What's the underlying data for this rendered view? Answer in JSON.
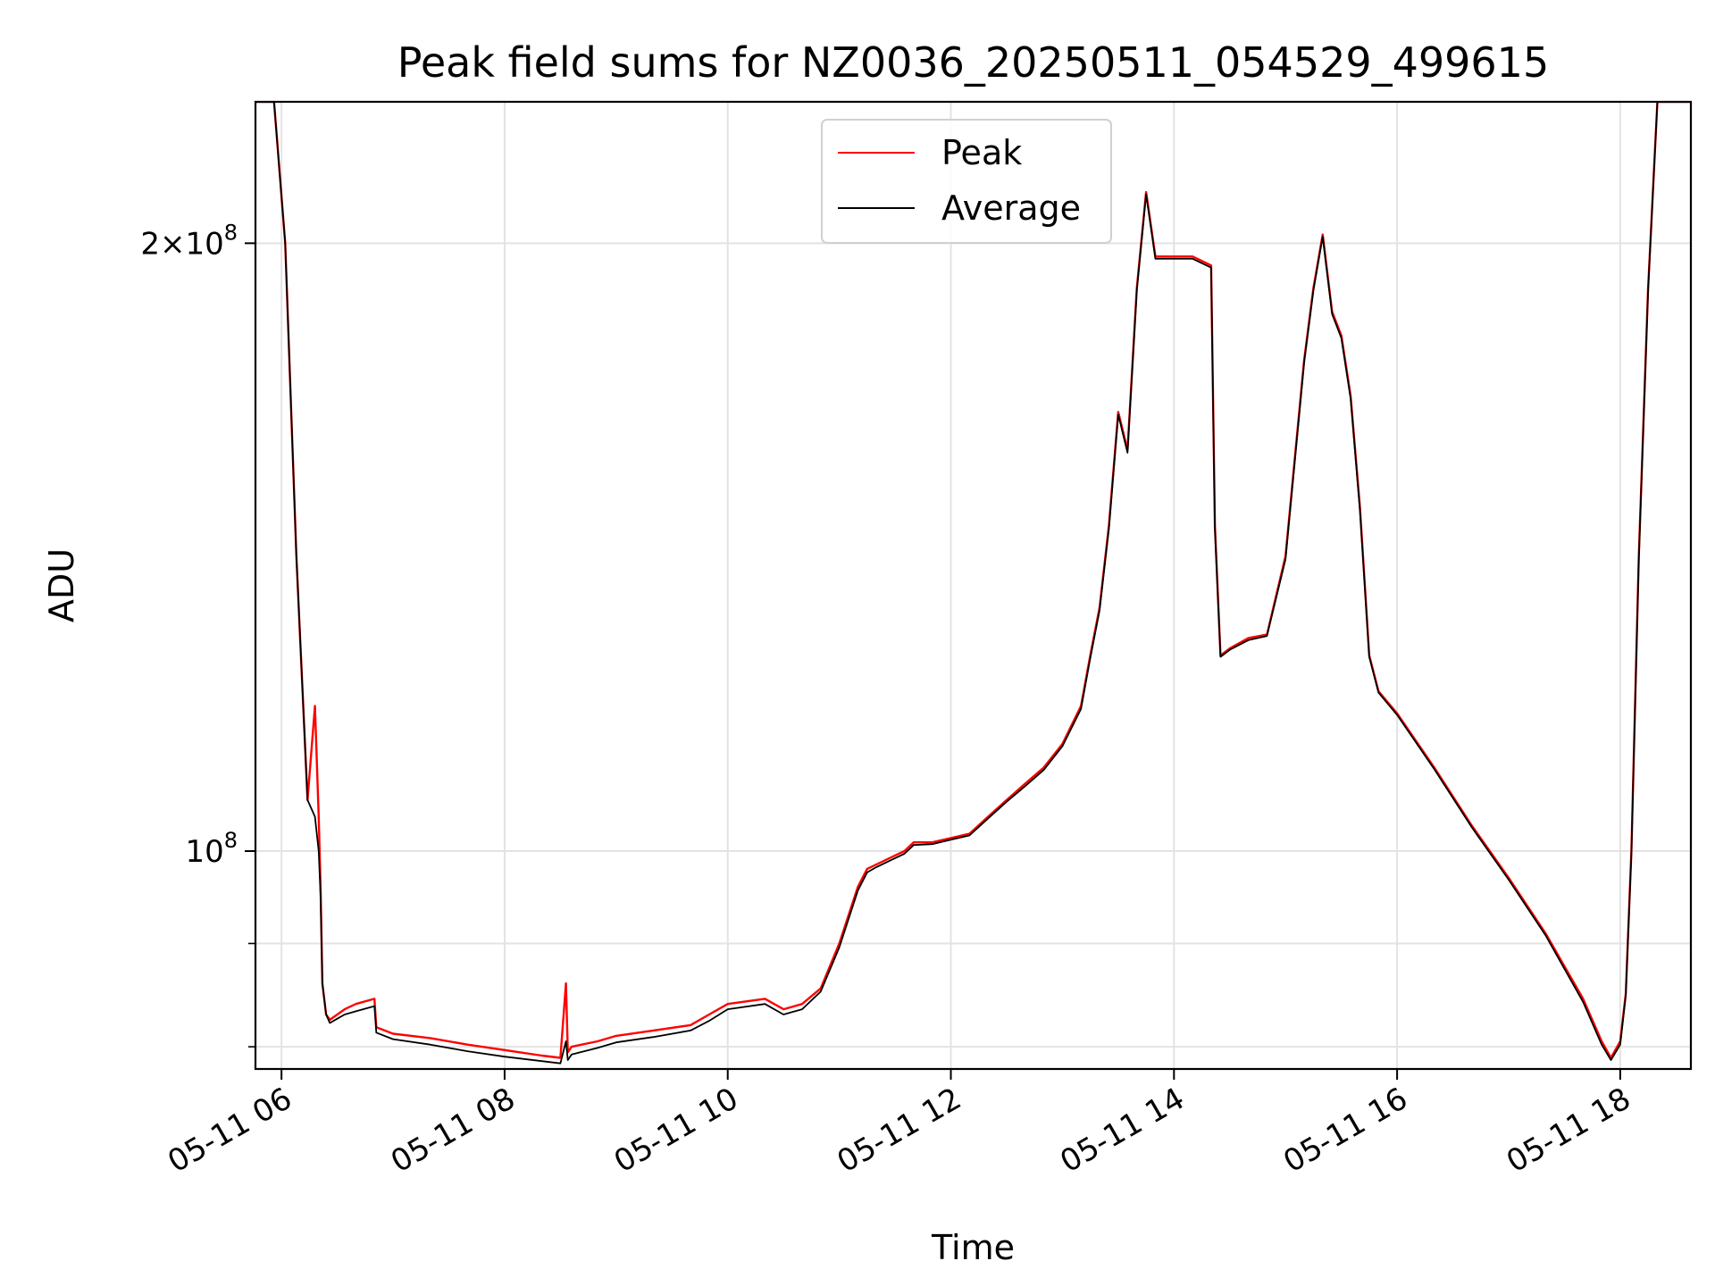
{
  "chart_data": {
    "type": "line",
    "title": "Peak field sums for NZ0036_20250511_054529_499615",
    "xlabel": "Time",
    "ylabel": "ADU",
    "x_axis_type": "datetime",
    "xlim": [
      "05-11 05:46",
      "05-11 18:38"
    ],
    "x_ticks": [
      "05-11 06",
      "05-11 08",
      "05-11 10",
      "05-11 12",
      "05-11 14",
      "05-11 16",
      "05-11 18"
    ],
    "y_scale": "log",
    "ylim": [
      78000000,
      235000000
    ],
    "y_major_ticks": [
      {
        "value": 100000000,
        "label": "10^8"
      },
      {
        "value": 200000000,
        "label": "2×10^8"
      }
    ],
    "y_minor_ticks": [
      80000000,
      90000000
    ],
    "grid": true,
    "legend_position": "upper center",
    "series": [
      {
        "name": "Peak",
        "color": "#ff0000",
        "x": [
          "05-11 05:46",
          "05-11 05:56",
          "05-11 06:02",
          "06:08",
          "06:14",
          "06:18",
          "06:20",
          "06:21",
          "06:22",
          "06:24",
          "06:26",
          "06:30",
          "06:34",
          "06:40",
          "06:50",
          "06:51",
          "07:00",
          "07:20",
          "07:40",
          "08:00",
          "08:20",
          "08:30",
          "08:33",
          "08:34",
          "08:36",
          "08:50",
          "09:00",
          "09:20",
          "09:40",
          "09:50",
          "10:00",
          "10:20",
          "10:30",
          "10:40",
          "10:50",
          "11:00",
          "11:10",
          "11:15",
          "11:20",
          "11:30",
          "11:35",
          "11:40",
          "11:50",
          "12:00",
          "12:10",
          "12:20",
          "12:30",
          "12:40",
          "12:50",
          "13:00",
          "13:10",
          "13:15",
          "13:20",
          "13:25",
          "13:30",
          "13:35",
          "13:40",
          "13:45",
          "13:50",
          "14:00",
          "14:10",
          "14:20",
          "14:22",
          "14:25",
          "14:30",
          "14:40",
          "14:50",
          "15:00",
          "15:10",
          "15:15",
          "15:20",
          "15:25",
          "15:30",
          "15:35",
          "15:40",
          "15:45",
          "15:50",
          "16:00",
          "16:20",
          "16:40",
          "17:00",
          "17:20",
          "17:40",
          "17:50",
          "17:55",
          "18:00",
          "18:03",
          "18:06",
          "18:10",
          "18:15",
          "18:20",
          "18:26",
          "18:38"
        ],
        "y": [
          235000000,
          235000000,
          200000000,
          140000000,
          106000000,
          118000000,
          104000000,
          96000000,
          86000000,
          83000000,
          82500000,
          83000000,
          83500000,
          84000000,
          84500000,
          81800000,
          81200000,
          80800000,
          80200000,
          79700000,
          79200000,
          79000000,
          86000000,
          79500000,
          80000000,
          80500000,
          81000000,
          81500000,
          82000000,
          83000000,
          84000000,
          84500000,
          83500000,
          84000000,
          85500000,
          90000000,
          96000000,
          98000000,
          98500000,
          99500000,
          100000000,
          101000000,
          101000000,
          101500000,
          102000000,
          104000000,
          106000000,
          108000000,
          110000000,
          113000000,
          118000000,
          125000000,
          132000000,
          145000000,
          165000000,
          158000000,
          190000000,
          212000000,
          197000000,
          197000000,
          197000000,
          195000000,
          145000000,
          125000000,
          126000000,
          127500000,
          128000000,
          140000000,
          175000000,
          190000000,
          202000000,
          185000000,
          180000000,
          168000000,
          148000000,
          125000000,
          120000000,
          117000000,
          110000000,
          103000000,
          97000000,
          91000000,
          84500000,
          80500000,
          79000000,
          80500000,
          85000000,
          100000000,
          140000000,
          190000000,
          235000000,
          235000000,
          235000000
        ]
      },
      {
        "name": "Average",
        "color": "#000000",
        "x": [
          "05-11 05:46",
          "05-11 05:56",
          "05-11 06:02",
          "06:08",
          "06:14",
          "06:18",
          "06:20",
          "06:21",
          "06:22",
          "06:24",
          "06:26",
          "06:30",
          "06:34",
          "06:40",
          "06:50",
          "06:51",
          "07:00",
          "07:20",
          "07:40",
          "08:00",
          "08:20",
          "08:30",
          "08:33",
          "08:34",
          "08:36",
          "08:50",
          "09:00",
          "09:20",
          "09:40",
          "09:50",
          "10:00",
          "10:20",
          "10:30",
          "10:40",
          "10:50",
          "11:00",
          "11:10",
          "11:15",
          "11:20",
          "11:30",
          "11:35",
          "11:40",
          "11:50",
          "12:00",
          "12:10",
          "12:20",
          "12:30",
          "12:40",
          "12:50",
          "13:00",
          "13:10",
          "13:15",
          "13:20",
          "13:25",
          "13:30",
          "13:35",
          "13:40",
          "13:45",
          "13:50",
          "14:00",
          "14:10",
          "14:20",
          "14:22",
          "14:25",
          "14:30",
          "14:40",
          "14:50",
          "15:00",
          "15:10",
          "15:15",
          "15:20",
          "15:25",
          "15:30",
          "15:35",
          "15:40",
          "15:45",
          "15:50",
          "16:00",
          "16:20",
          "16:40",
          "17:00",
          "17:20",
          "17:40",
          "17:50",
          "17:55",
          "18:00",
          "18:03",
          "18:06",
          "18:10",
          "18:15",
          "18:20",
          "18:26",
          "18:38"
        ],
        "y": [
          235000000,
          235000000,
          200000000,
          140000000,
          106000000,
          104000000,
          100000000,
          95000000,
          86000000,
          83000000,
          82200000,
          82600000,
          83000000,
          83300000,
          83800000,
          81300000,
          80700000,
          80200000,
          79600000,
          79100000,
          78700000,
          78500000,
          80500000,
          78800000,
          79300000,
          79900000,
          80400000,
          80900000,
          81500000,
          82400000,
          83500000,
          84000000,
          83000000,
          83500000,
          85200000,
          89600000,
          95600000,
          97600000,
          98200000,
          99200000,
          99700000,
          100700000,
          100800000,
          101300000,
          101800000,
          103800000,
          105800000,
          107700000,
          109700000,
          112700000,
          117600000,
          124600000,
          131600000,
          144500000,
          164500000,
          157500000,
          189500000,
          211500000,
          196500000,
          196500000,
          196500000,
          194500000,
          144500000,
          124800000,
          125800000,
          127200000,
          127800000,
          139500000,
          174500000,
          189500000,
          201500000,
          184500000,
          179500000,
          167500000,
          147500000,
          124800000,
          119800000,
          116800000,
          109800000,
          102800000,
          96800000,
          90800000,
          84200000,
          80200000,
          78800000,
          80200000,
          84800000,
          99700000,
          139500000,
          189500000,
          235000000,
          235000000,
          235000000
        ]
      }
    ]
  }
}
